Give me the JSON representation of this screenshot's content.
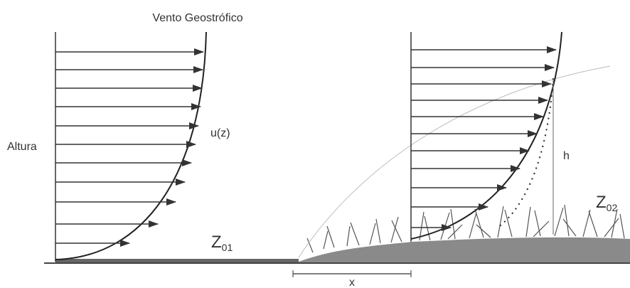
{
  "labels": {
    "geostrophic": "Vento Geostrófico",
    "height": "Altura",
    "profile": "u(z)",
    "roughness_1": {
      "main": "Z",
      "sub": "01"
    },
    "roughness_2": {
      "main": "Z",
      "sub": "02"
    },
    "boundary_height": "h",
    "distance": "x"
  }
}
